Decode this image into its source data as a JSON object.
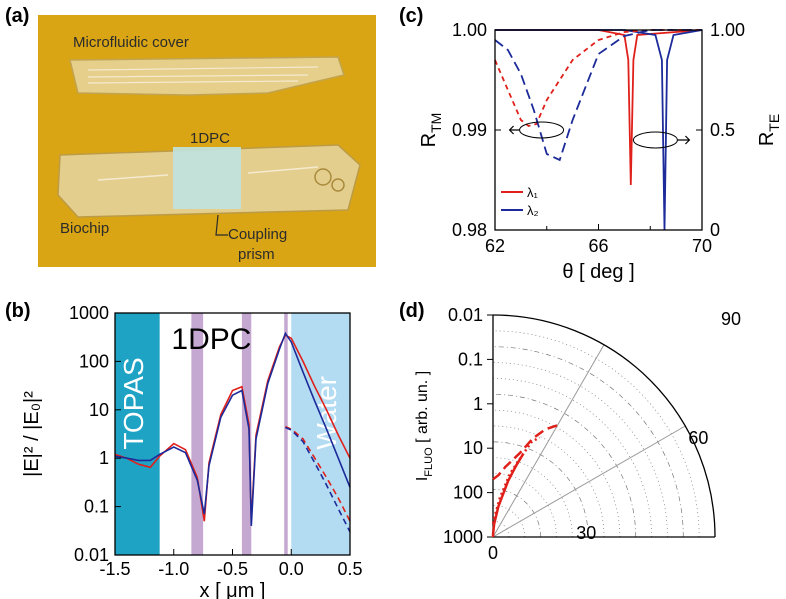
{
  "figure": {
    "panels": {
      "a": {
        "label": "(a)",
        "photo_labels": {
          "cover": "Microfluidic cover",
          "onedpc": "1DPC",
          "biochip": "Biochip",
          "prism_line1": "Coupling",
          "prism_line2": "prism"
        },
        "background_color": "#d9a515"
      },
      "b": {
        "label": "(b)"
      },
      "c": {
        "label": "(c)"
      },
      "d": {
        "label": "(d)"
      }
    }
  },
  "chart_data": [
    {
      "panel": "b",
      "type": "line",
      "xlabel": "x [ μm ]",
      "ylabel": "|E|² / |E₀|²",
      "xlim": [
        -1.5,
        0.5
      ],
      "ylim": [
        0.01,
        1000
      ],
      "y_scale": "log",
      "x_ticks": [
        "-1.5",
        "-1.0",
        "-0.5",
        "0.0",
        "0.5"
      ],
      "y_ticks": [
        "0.01",
        "0.1",
        "1",
        "10",
        "100",
        "1000"
      ],
      "region_labels": {
        "left": "TOPAS",
        "center": "1DPC",
        "right": "Water"
      },
      "colors": {
        "topas": "#1ea3c4",
        "water": "#b3dcf2",
        "layer": "#c5a8d2",
        "red": "#e0201a",
        "blue": "#1c2a9a"
      },
      "layers": [
        [
          -1.5,
          -1.12
        ],
        [
          -0.85,
          -0.75
        ],
        [
          -0.42,
          -0.34
        ],
        [
          -0.06,
          -0.03
        ],
        [
          0.0,
          0.5
        ]
      ],
      "series": [
        {
          "color": "red",
          "x": [
            -1.5,
            -1.4,
            -1.3,
            -1.2,
            -1.12,
            -1.0,
            -0.9,
            -0.8,
            -0.74,
            -0.7,
            -0.6,
            -0.5,
            -0.42,
            -0.36,
            -0.34,
            -0.3,
            -0.2,
            -0.1,
            -0.05,
            0.0,
            0.1,
            0.2,
            0.3,
            0.4,
            0.5
          ],
          "values": [
            1.2,
            1.0,
            0.75,
            0.65,
            1.1,
            2.0,
            1.5,
            0.4,
            0.05,
            0.8,
            8,
            25,
            30,
            5,
            0.05,
            3,
            40,
            200,
            350,
            300,
            100,
            30,
            10,
            3,
            1
          ]
        },
        {
          "color": "blue",
          "x": [
            -1.5,
            -1.4,
            -1.3,
            -1.2,
            -1.12,
            -1.0,
            -0.9,
            -0.8,
            -0.74,
            -0.7,
            -0.6,
            -0.5,
            -0.42,
            -0.36,
            -0.34,
            -0.3,
            -0.2,
            -0.1,
            -0.05,
            0.0,
            0.1,
            0.2,
            0.3,
            0.4,
            0.5
          ],
          "values": [
            1.1,
            1.0,
            0.9,
            0.9,
            1.2,
            1.7,
            1.3,
            0.35,
            0.07,
            0.7,
            7,
            20,
            25,
            4,
            0.04,
            2.5,
            35,
            180,
            380,
            250,
            60,
            15,
            4,
            1,
            0.25
          ]
        },
        {
          "color": "red",
          "dashed": true,
          "x": [
            -0.05,
            0.0,
            0.1,
            0.2,
            0.3,
            0.4,
            0.5
          ],
          "values": [
            4.5,
            4.0,
            2.5,
            1.0,
            0.4,
            0.15,
            0.05
          ]
        },
        {
          "color": "blue",
          "dashed": true,
          "x": [
            -0.05,
            0.0,
            0.1,
            0.2,
            0.3,
            0.4,
            0.5
          ],
          "values": [
            4.3,
            3.8,
            2.2,
            0.8,
            0.28,
            0.09,
            0.03
          ]
        }
      ]
    },
    {
      "panel": "c",
      "type": "line",
      "xlabel": "θ [ deg ]",
      "ylabel_left": "R_TM",
      "ylabel_right": "R_TE",
      "xlim": [
        62,
        70
      ],
      "ylim_left": [
        0.98,
        1.0
      ],
      "ylim_right": [
        0,
        1.0
      ],
      "x_ticks": [
        "62",
        "66",
        "70"
      ],
      "x_minor_ticks": [
        64,
        68
      ],
      "y_ticks_left": [
        "0.98",
        "0.99",
        "1.00"
      ],
      "y_ticks_right": [
        "0",
        "0.5",
        "1.00"
      ],
      "legend": [
        {
          "name": "λ₁",
          "color": "#e0201a"
        },
        {
          "name": "λ₂",
          "color": "#1c2a9a"
        }
      ],
      "legend_position": "bottom-left",
      "series": [
        {
          "name": "λ₁",
          "axis": "left",
          "style": "solid",
          "color": "#e0201a",
          "x": [
            62,
            66,
            67.0,
            67.15,
            67.25,
            67.35,
            67.5,
            70
          ],
          "values": [
            1.0,
            1.0,
            0.9995,
            0.997,
            0.9845,
            0.997,
            0.9995,
            1.0
          ]
        },
        {
          "name": "λ₂",
          "axis": "left",
          "style": "solid",
          "color": "#1c2a9a",
          "x": [
            62,
            67,
            68.2,
            68.45,
            68.55,
            68.65,
            68.9,
            70
          ],
          "values": [
            1.0,
            1.0,
            0.9995,
            0.997,
            0.98,
            0.997,
            0.9995,
            1.0
          ]
        },
        {
          "name": "λ₁",
          "axis": "right",
          "style": "dashed",
          "color": "#e0201a",
          "x": [
            62,
            62.5,
            63,
            63.3,
            63.6,
            64,
            65,
            66,
            67,
            68,
            69,
            70
          ],
          "values": [
            0.85,
            0.7,
            0.55,
            0.52,
            0.53,
            0.65,
            0.85,
            0.95,
            0.99,
            1.0,
            1.0,
            1.0
          ]
        },
        {
          "name": "λ₂",
          "axis": "right",
          "style": "dashed",
          "color": "#1c2a9a",
          "x": [
            62,
            62.5,
            63,
            63.5,
            64,
            64.5,
            65,
            66,
            67,
            68,
            69,
            70
          ],
          "values": [
            0.95,
            0.9,
            0.78,
            0.6,
            0.38,
            0.35,
            0.55,
            0.88,
            0.97,
            1.0,
            1.0,
            1.0
          ]
        }
      ]
    },
    {
      "panel": "d",
      "type": "polar",
      "ylabel": "I_FLUO [ arb. un. ]",
      "radial_scale": "log-reversed",
      "radial_ticks": [
        "0.01",
        "0.1",
        "1",
        "10",
        "100",
        "1000"
      ],
      "angle_ticks": [
        "0",
        "30",
        "60",
        "90"
      ],
      "series_color": "#e0201a",
      "series": [
        {
          "style": "solid",
          "theta": [
            90,
            88,
            85,
            80,
            75,
            72,
            70
          ],
          "values": [
            0.01,
            0.012,
            0.02,
            0.05,
            0.2,
            0.5,
            1.0
          ]
        },
        {
          "style": "dotted",
          "theta": [
            90,
            85,
            80,
            75,
            70,
            68,
            65
          ],
          "values": [
            0.02,
            0.03,
            0.08,
            0.3,
            1.0,
            2.0,
            3.0
          ]
        },
        {
          "style": "dashed",
          "theta": [
            90,
            85,
            80,
            72,
            68,
            64,
            60
          ],
          "values": [
            0.2,
            0.25,
            0.4,
            1.0,
            2.5,
            5.0,
            8.0
          ]
        }
      ]
    }
  ]
}
